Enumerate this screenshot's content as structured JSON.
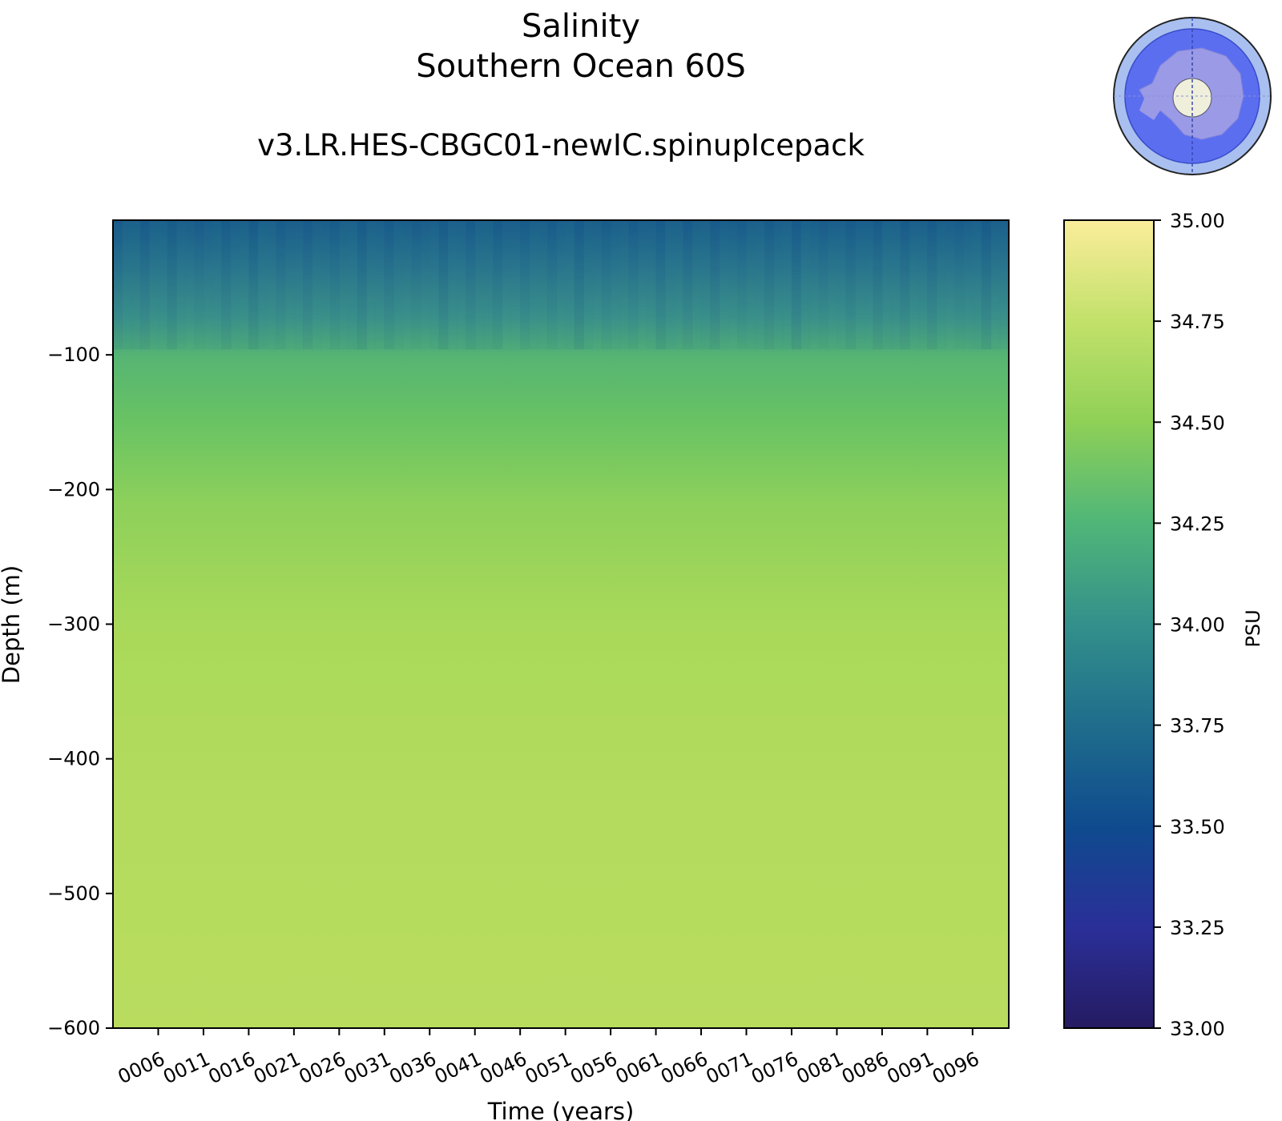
{
  "chart_data": {
    "type": "heatmap",
    "title": "Salinity",
    "region": "Southern Ocean 60S",
    "subtitle": "v3.LR.HES-CBGC01-newIC.spinupIcepack",
    "xlabel": "Time (years)",
    "ylabel": "Depth (m)",
    "colorbar_label": "PSU",
    "x_ticks": [
      "0006",
      "0011",
      "0016",
      "0021",
      "0026",
      "0031",
      "0036",
      "0041",
      "0046",
      "0051",
      "0056",
      "0061",
      "0066",
      "0071",
      "0076",
      "0081",
      "0086",
      "0091",
      "0096"
    ],
    "x_range": [
      1,
      100
    ],
    "y_ticks": [
      -100,
      -200,
      -300,
      -400,
      -500,
      -600
    ],
    "y_range": [
      -600,
      0
    ],
    "color_range": [
      33.0,
      35.0
    ],
    "colorbar_ticks": [
      "35.00",
      "34.75",
      "34.50",
      "34.25",
      "34.00",
      "33.75",
      "33.50",
      "33.25",
      "33.00"
    ],
    "colormap": "YlGnBu_r",
    "depth_profile": [
      {
        "depth": 0,
        "salinity": 33.75
      },
      {
        "depth": -50,
        "salinity": 33.95
      },
      {
        "depth": -100,
        "salinity": 34.2
      },
      {
        "depth": -150,
        "salinity": 34.4
      },
      {
        "depth": -200,
        "salinity": 34.5
      },
      {
        "depth": -250,
        "salinity": 34.56
      },
      {
        "depth": -300,
        "salinity": 34.62
      },
      {
        "depth": -400,
        "salinity": 34.66
      },
      {
        "depth": -500,
        "salinity": 34.68
      },
      {
        "depth": -600,
        "salinity": 34.69
      }
    ],
    "inset_map": "antarctic-polar-map"
  }
}
